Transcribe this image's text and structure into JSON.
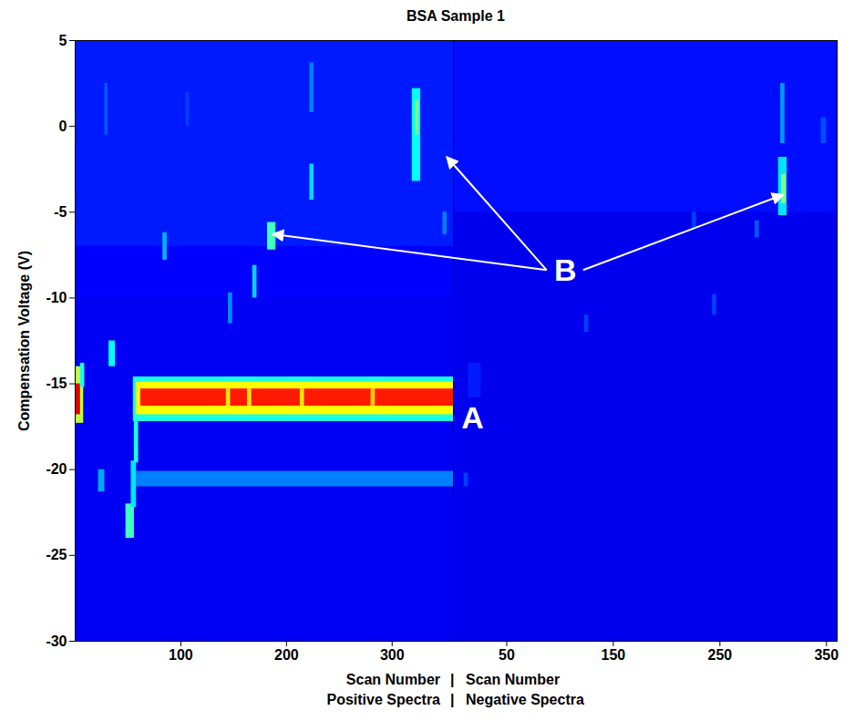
{
  "chart_data": {
    "type": "heatmap",
    "title": "BSA Sample 1",
    "ylabel": "Compensation Voltage (V)",
    "ylim": [
      -30,
      5
    ],
    "yticks": [
      5,
      0,
      -5,
      -10,
      -15,
      -20,
      -25,
      -30
    ],
    "value_range": [
      0,
      1
    ],
    "separator": "|",
    "panels": [
      {
        "xlabel": [
          "Scan Number",
          "Positive Spectra"
        ],
        "xlim": [
          0,
          358
        ],
        "xticks": [
          100,
          200,
          300
        ],
        "cells": [
          [
            0,
            358,
            -30,
            5,
            0.18
          ],
          [
            0,
            358,
            -7,
            5,
            0.22
          ],
          [
            0,
            358,
            -10,
            -7,
            0.2
          ],
          [
            55,
            358,
            -17.2,
            -14.6,
            0.42
          ],
          [
            58,
            358,
            -16.8,
            -14.9,
            0.6
          ],
          [
            62,
            358,
            -16.3,
            -15.3,
            0.78
          ],
          [
            143,
            147,
            -16.3,
            -15.3,
            0.62
          ],
          [
            163,
            167,
            -16.3,
            -15.3,
            0.62
          ],
          [
            213,
            217,
            -16.3,
            -15.3,
            0.62
          ],
          [
            280,
            284,
            -16.3,
            -15.3,
            0.64
          ],
          [
            58,
            358,
            -21,
            -20.1,
            0.3
          ],
          [
            48,
            56,
            -24,
            -22,
            0.45
          ],
          [
            53,
            58,
            -22.2,
            -19.5,
            0.38
          ],
          [
            56,
            60,
            -19.6,
            -17.2,
            0.42
          ],
          [
            0,
            8,
            -17.3,
            -14,
            0.55
          ],
          [
            0,
            5,
            -16.8,
            -15,
            0.85
          ],
          [
            5,
            9,
            -15.2,
            -13.8,
            0.42
          ],
          [
            22,
            28,
            -21.3,
            -20,
            0.33
          ],
          [
            32,
            38,
            -14,
            -12.5,
            0.4
          ],
          [
            28,
            31,
            -0.5,
            2.5,
            0.27
          ],
          [
            83,
            87,
            -7.8,
            -6.2,
            0.34
          ],
          [
            182,
            190,
            -7.2,
            -5.6,
            0.45
          ],
          [
            168,
            172,
            -10,
            -8.1,
            0.37
          ],
          [
            145,
            149,
            -11.5,
            -9.7,
            0.31
          ],
          [
            222,
            226,
            -4.3,
            -2.2,
            0.37
          ],
          [
            222,
            226,
            0.8,
            3.7,
            0.3
          ],
          [
            319,
            327,
            -3.2,
            2.2,
            0.4
          ],
          [
            322,
            325,
            -0.5,
            1.5,
            0.52
          ],
          [
            348,
            352,
            -6.3,
            -5,
            0.3
          ],
          [
            105,
            108,
            0,
            2,
            0.25
          ]
        ]
      },
      {
        "xlabel": [
          "Scan Number",
          "Negative Spectra"
        ],
        "xlim": [
          0,
          360
        ],
        "xticks": [
          50,
          150,
          250,
          350
        ],
        "cells": [
          [
            0,
            360,
            -30,
            5,
            0.17
          ],
          [
            0,
            360,
            -5,
            5,
            0.21
          ],
          [
            14,
            26,
            -15.8,
            -13.8,
            0.22
          ],
          [
            10,
            14,
            -21,
            -20.2,
            0.25
          ],
          [
            305,
            313,
            -5.2,
            -1.8,
            0.38
          ],
          [
            308,
            312,
            -4.5,
            -2.8,
            0.5
          ],
          [
            307,
            311,
            -1,
            2.5,
            0.32
          ],
          [
            123,
            127,
            -12,
            -11,
            0.25
          ],
          [
            243,
            247,
            -11,
            -9.8,
            0.25
          ],
          [
            224,
            228,
            -6,
            -5,
            0.25
          ],
          [
            283,
            287,
            -6.5,
            -5.5,
            0.27
          ],
          [
            345,
            350,
            -1,
            0.5,
            0.26
          ]
        ]
      }
    ],
    "annotations": [
      {
        "text": "A",
        "panel": 1,
        "x": 18,
        "y": -17
      },
      {
        "text": "B",
        "panel": 1,
        "x": 105,
        "y": -8.4,
        "arrows": [
          {
            "panel": 0,
            "x": 187,
            "y": -6.3
          },
          {
            "panel": 0,
            "x": 352,
            "y": -1.8
          },
          {
            "panel": 1,
            "x": 310,
            "y": -4
          }
        ]
      }
    ]
  }
}
